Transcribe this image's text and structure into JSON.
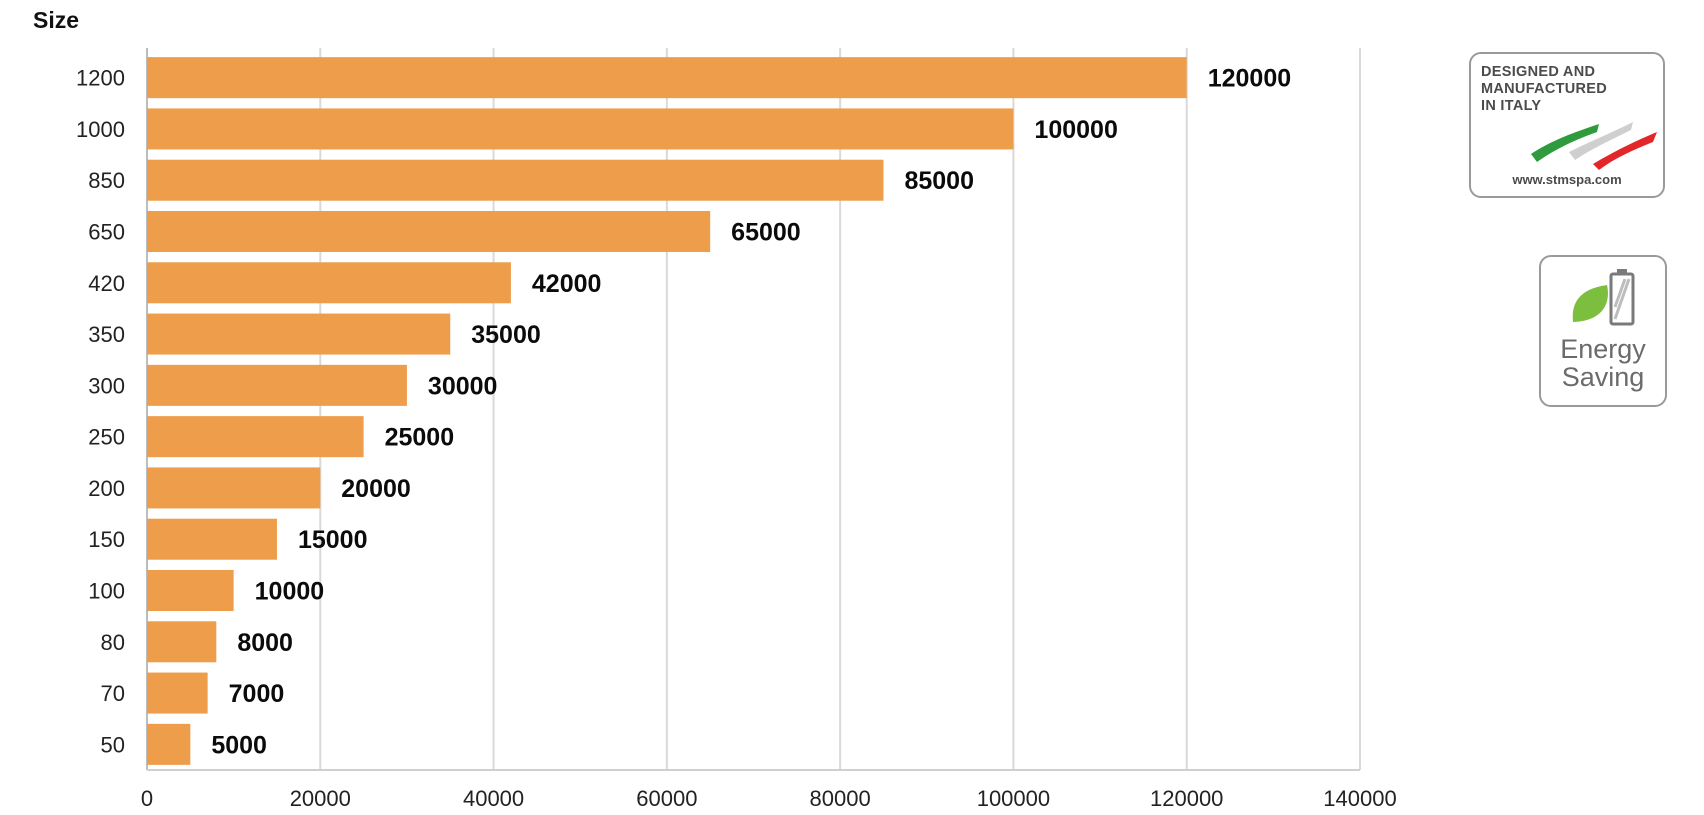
{
  "chart_data": {
    "type": "bar",
    "orientation": "horizontal",
    "title": "",
    "ylabel": "Size",
    "xlabel": "",
    "categories": [
      "1200",
      "1000",
      "850",
      "650",
      "420",
      "350",
      "300",
      "250",
      "200",
      "150",
      "100",
      "80",
      "70",
      "50"
    ],
    "values": [
      120000,
      100000,
      85000,
      65000,
      42000,
      35000,
      30000,
      25000,
      20000,
      15000,
      10000,
      8000,
      7000,
      5000
    ],
    "xlim": [
      0,
      140000
    ],
    "x_ticks": [
      "0",
      "20000",
      "40000",
      "60000",
      "80000",
      "100000",
      "120000",
      "140000"
    ],
    "data_labels": true,
    "grid": "vertical",
    "legend": "none",
    "bar_color": "#EE9D4B",
    "grid_color": "#d9d9d9"
  },
  "badges": {
    "italy": {
      "lines": [
        "DESIGNED AND",
        "MANUFACTURED",
        "IN ITALY"
      ],
      "url": "www.stmspa.com",
      "flag_colors": [
        "#2f9a3e",
        "#cfcfcf",
        "#e3262a"
      ]
    },
    "energy": {
      "line1": "Energy",
      "line2": "Saving",
      "leaf_color": "#7cbf3f",
      "icon_names": [
        "leaf-icon",
        "battery-icon"
      ]
    }
  }
}
